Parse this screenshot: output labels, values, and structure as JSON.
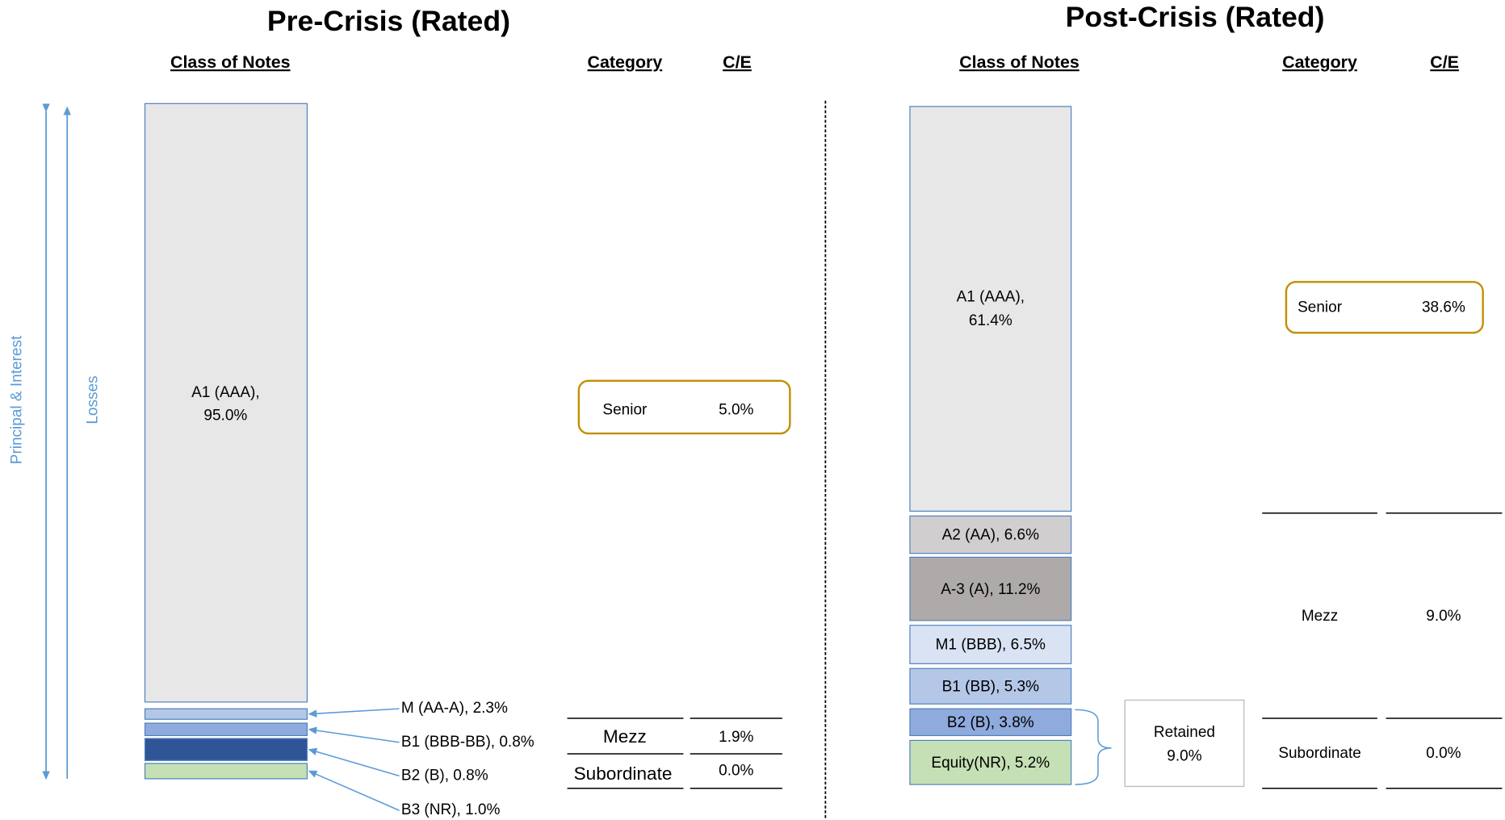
{
  "axis_labels": {
    "outer": "Principal & Interest",
    "inner": "Losses"
  },
  "pre": {
    "title": "Pre-Crisis (Rated)",
    "headers": [
      "Class of Notes",
      "Category",
      "C/E"
    ],
    "tranches": [
      {
        "lines": [
          "A1 (AAA),",
          "95.0%"
        ]
      },
      {
        "lines": [
          "M (AA-A), 2.3%"
        ]
      },
      {
        "lines": [
          "B1 (BBB-BB), 0.8%"
        ]
      },
      {
        "lines": [
          "B2 (B), 0.8%"
        ]
      },
      {
        "lines": [
          "B3 (NR), 1.0%"
        ]
      }
    ],
    "categories": [
      {
        "name": "Senior",
        "ce": "5.0%"
      },
      {
        "name": "Mezz",
        "ce": "1.9%"
      },
      {
        "name": "Subordinate",
        "ce": "0.0%"
      }
    ]
  },
  "post": {
    "title": "Post-Crisis (Rated)",
    "headers": [
      "Class of Notes",
      "Category",
      "C/E"
    ],
    "tranches": [
      {
        "lines": [
          "A1 (AAA),",
          "61.4%"
        ]
      },
      {
        "lines": [
          "A2 (AA), 6.6%"
        ]
      },
      {
        "lines": [
          "A-3 (A), 11.2%"
        ]
      },
      {
        "lines": [
          "M1 (BBB), 6.5%"
        ]
      },
      {
        "lines": [
          "B1 (BB), 5.3%"
        ]
      },
      {
        "lines": [
          "B2 (B), 3.8%"
        ]
      },
      {
        "lines": [
          "Equity(NR), 5.2%"
        ]
      }
    ],
    "retained": [
      "Retained",
      "9.0%"
    ],
    "categories": [
      {
        "name": "Senior",
        "ce": "38.6%"
      },
      {
        "name": "Mezz",
        "ce": "9.0%"
      },
      {
        "name": "Subordinate",
        "ce": "0.0%"
      }
    ]
  }
}
